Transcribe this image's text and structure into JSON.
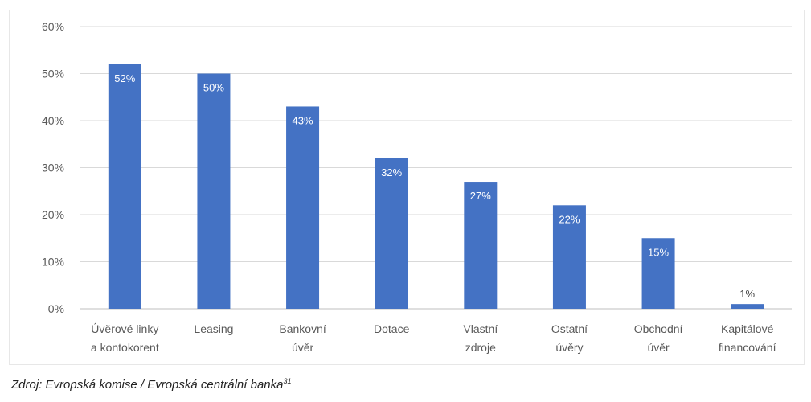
{
  "chart_data": {
    "type": "bar",
    "categories": [
      [
        "Úvěrové linky",
        "a kontokorent"
      ],
      [
        "Leasing"
      ],
      [
        "Bankovní",
        "úvěr"
      ],
      [
        "Dotace"
      ],
      [
        "Vlastní",
        "zdroje"
      ],
      [
        "Ostatní",
        "úvěry"
      ],
      [
        "Obchodní",
        "úvěr"
      ],
      [
        "Kapitálové",
        "financování"
      ]
    ],
    "values": [
      52,
      50,
      43,
      32,
      27,
      22,
      15,
      1
    ],
    "value_labels": [
      "52%",
      "50%",
      "43%",
      "32%",
      "27%",
      "22%",
      "15%",
      "1%"
    ],
    "ylim": [
      0,
      60
    ],
    "yticks": [
      0,
      10,
      20,
      30,
      40,
      50,
      60
    ],
    "ytick_labels": [
      "0%",
      "10%",
      "20%",
      "30%",
      "40%",
      "50%",
      "60%"
    ],
    "grid": true,
    "colors": {
      "bar": "#4472c4",
      "grid": "#d9d9d9",
      "axis": "#bfbfbf",
      "tick_text": "#595959",
      "label_inside": "#ffffff",
      "label_outside": "#404040"
    }
  },
  "source": {
    "text": "Zdroj: Evropská komise / Evropská centrální banka",
    "superscript": "31"
  }
}
